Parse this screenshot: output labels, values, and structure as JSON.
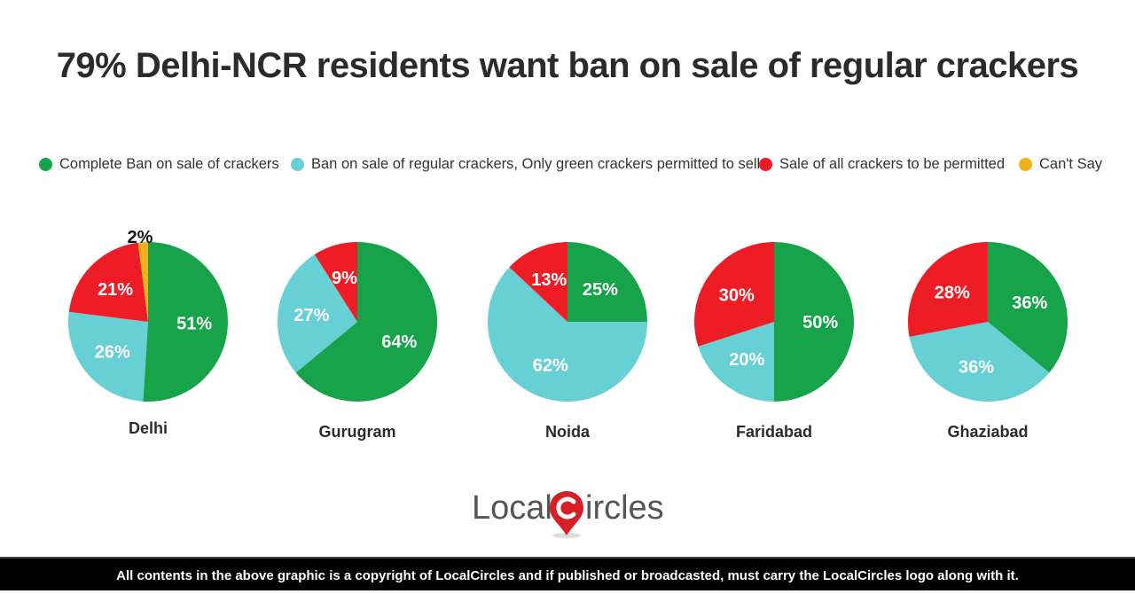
{
  "title": "79% Delhi-NCR residents want ban on sale of regular crackers",
  "legend": [
    {
      "label": "Complete Ban on sale of crackers",
      "color": "#16a34a"
    },
    {
      "label": "Ban on sale of regular crackers, Only green crackers permitted to sell",
      "color": "#67d0d4"
    },
    {
      "label": "Sale of all crackers to be permitted",
      "color": "#ee1c25"
    },
    {
      "label": "Can't Say",
      "color": "#f0b01c"
    }
  ],
  "logo": {
    "part1": "Local",
    "part2": "ircles",
    "brand": "LocalCircles"
  },
  "footer": "All contents in the above graphic is a copyright of LocalCircles and if published or broadcasted, must carry the LocalCircles logo along with it.",
  "chart_data": {
    "type": "pie",
    "title": "79% Delhi-NCR residents want ban on sale of regular crackers",
    "categories": [
      "Complete Ban on sale of crackers",
      "Ban on sale of regular crackers, Only green crackers permitted to sell",
      "Sale of all crackers to be permitted",
      "Can't Say"
    ],
    "colors": [
      "#16a34a",
      "#67d0d4",
      "#ee1c25",
      "#f0b01c"
    ],
    "legend_position": "top",
    "pies": [
      {
        "name": "Delhi",
        "values": [
          51,
          26,
          21,
          2
        ],
        "labels": [
          "51%",
          "26%",
          "21%",
          "2%"
        ]
      },
      {
        "name": "Gurugram",
        "values": [
          64,
          27,
          9,
          0
        ],
        "labels": [
          "64%",
          "27%",
          "9%",
          ""
        ]
      },
      {
        "name": "Noida",
        "values": [
          25,
          62,
          13,
          0
        ],
        "labels": [
          "25%",
          "62%",
          "13%",
          ""
        ]
      },
      {
        "name": "Faridabad",
        "values": [
          50,
          20,
          30,
          0
        ],
        "labels": [
          "50%",
          "20%",
          "30%",
          ""
        ]
      },
      {
        "name": "Ghaziabad",
        "values": [
          36,
          36,
          28,
          0
        ],
        "labels": [
          "36%",
          "36%",
          "28%",
          ""
        ]
      }
    ]
  }
}
